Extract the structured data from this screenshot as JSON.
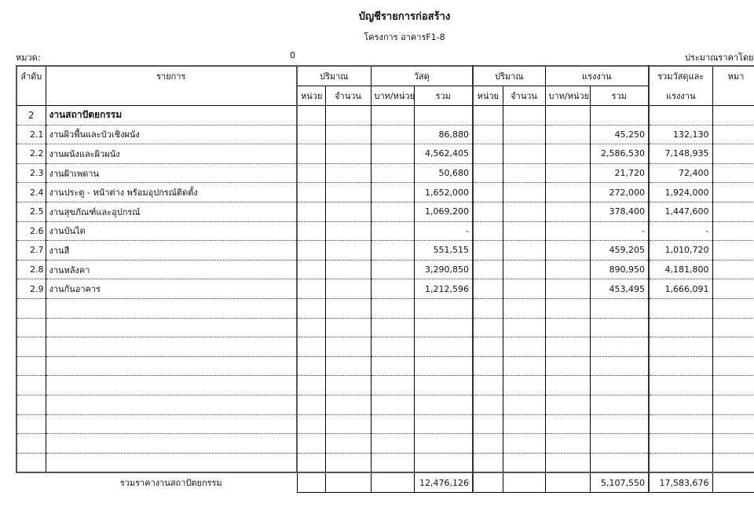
{
  "title": "บัญชีรายการก่อสร้าง",
  "subtitle": "โครงการ อาคารF1-8",
  "category_label": "หมวด:",
  "category_value": "0",
  "estimate_by": "ประมาณราคาโดย",
  "headers": {
    "no": "ลำดับ",
    "item": "รายการ",
    "qty1": "ปริมาณ",
    "material": "วัสดุ",
    "qty2": "ปริมาณ",
    "labor": "แรงงาน",
    "total_top": "รวมวัสดุและ",
    "total_bottom": "แรงงาน",
    "remark": "หมา",
    "unit": "หน่วย",
    "amount": "จำนวน",
    "baht_per_unit": "บาท/หน่วย",
    "sum": "รวม"
  },
  "section": {
    "no": "2",
    "name": "งานสถาปัตยกรรม"
  },
  "rows": [
    {
      "no": "2.1",
      "name": "งานผิวพื้นและบัวเชิงผนัง",
      "material": "86,880",
      "labor": "45,250",
      "total": "132,130"
    },
    {
      "no": "2.2",
      "name": "งานผนังและผิวผนัง",
      "material": "4,562,405",
      "labor": "2,586,530",
      "total": "7,148,935"
    },
    {
      "no": "2.3",
      "name": "งานฝ้าเพดาน",
      "material": "50,680",
      "labor": "21,720",
      "total": "72,400"
    },
    {
      "no": "2.4",
      "name": "งานประตู - หน้าต่าง พร้อมอุปกรณ์ติดตั้ง",
      "material": "1,652,000",
      "labor": "272,000",
      "total": "1,924,000"
    },
    {
      "no": "2.5",
      "name": "งานสุขภัณฑ์และอุปกรณ์",
      "material": "1,069,200",
      "labor": "378,400",
      "total": "1,447,600"
    },
    {
      "no": "2.6",
      "name": "งานบันได",
      "material": "-",
      "labor": "-",
      "total": "-"
    },
    {
      "no": "2.7",
      "name": "งานสี",
      "material": "551,515",
      "labor": "459,205",
      "total": "1,010,720"
    },
    {
      "no": "2.8",
      "name": "งานหลังคา",
      "material": "3,290,850",
      "labor": "890,950",
      "total": "4,181,800"
    },
    {
      "no": "2.9",
      "name": "งานกันอาคาร",
      "material": "1,212,596",
      "labor": "453,495",
      "total": "1,666,091"
    }
  ],
  "totals": {
    "label": "รวมราคางานสถาปัตยกรรม",
    "material": "12,476,126",
    "labor": "5,107,550",
    "total": "17,583,676"
  }
}
